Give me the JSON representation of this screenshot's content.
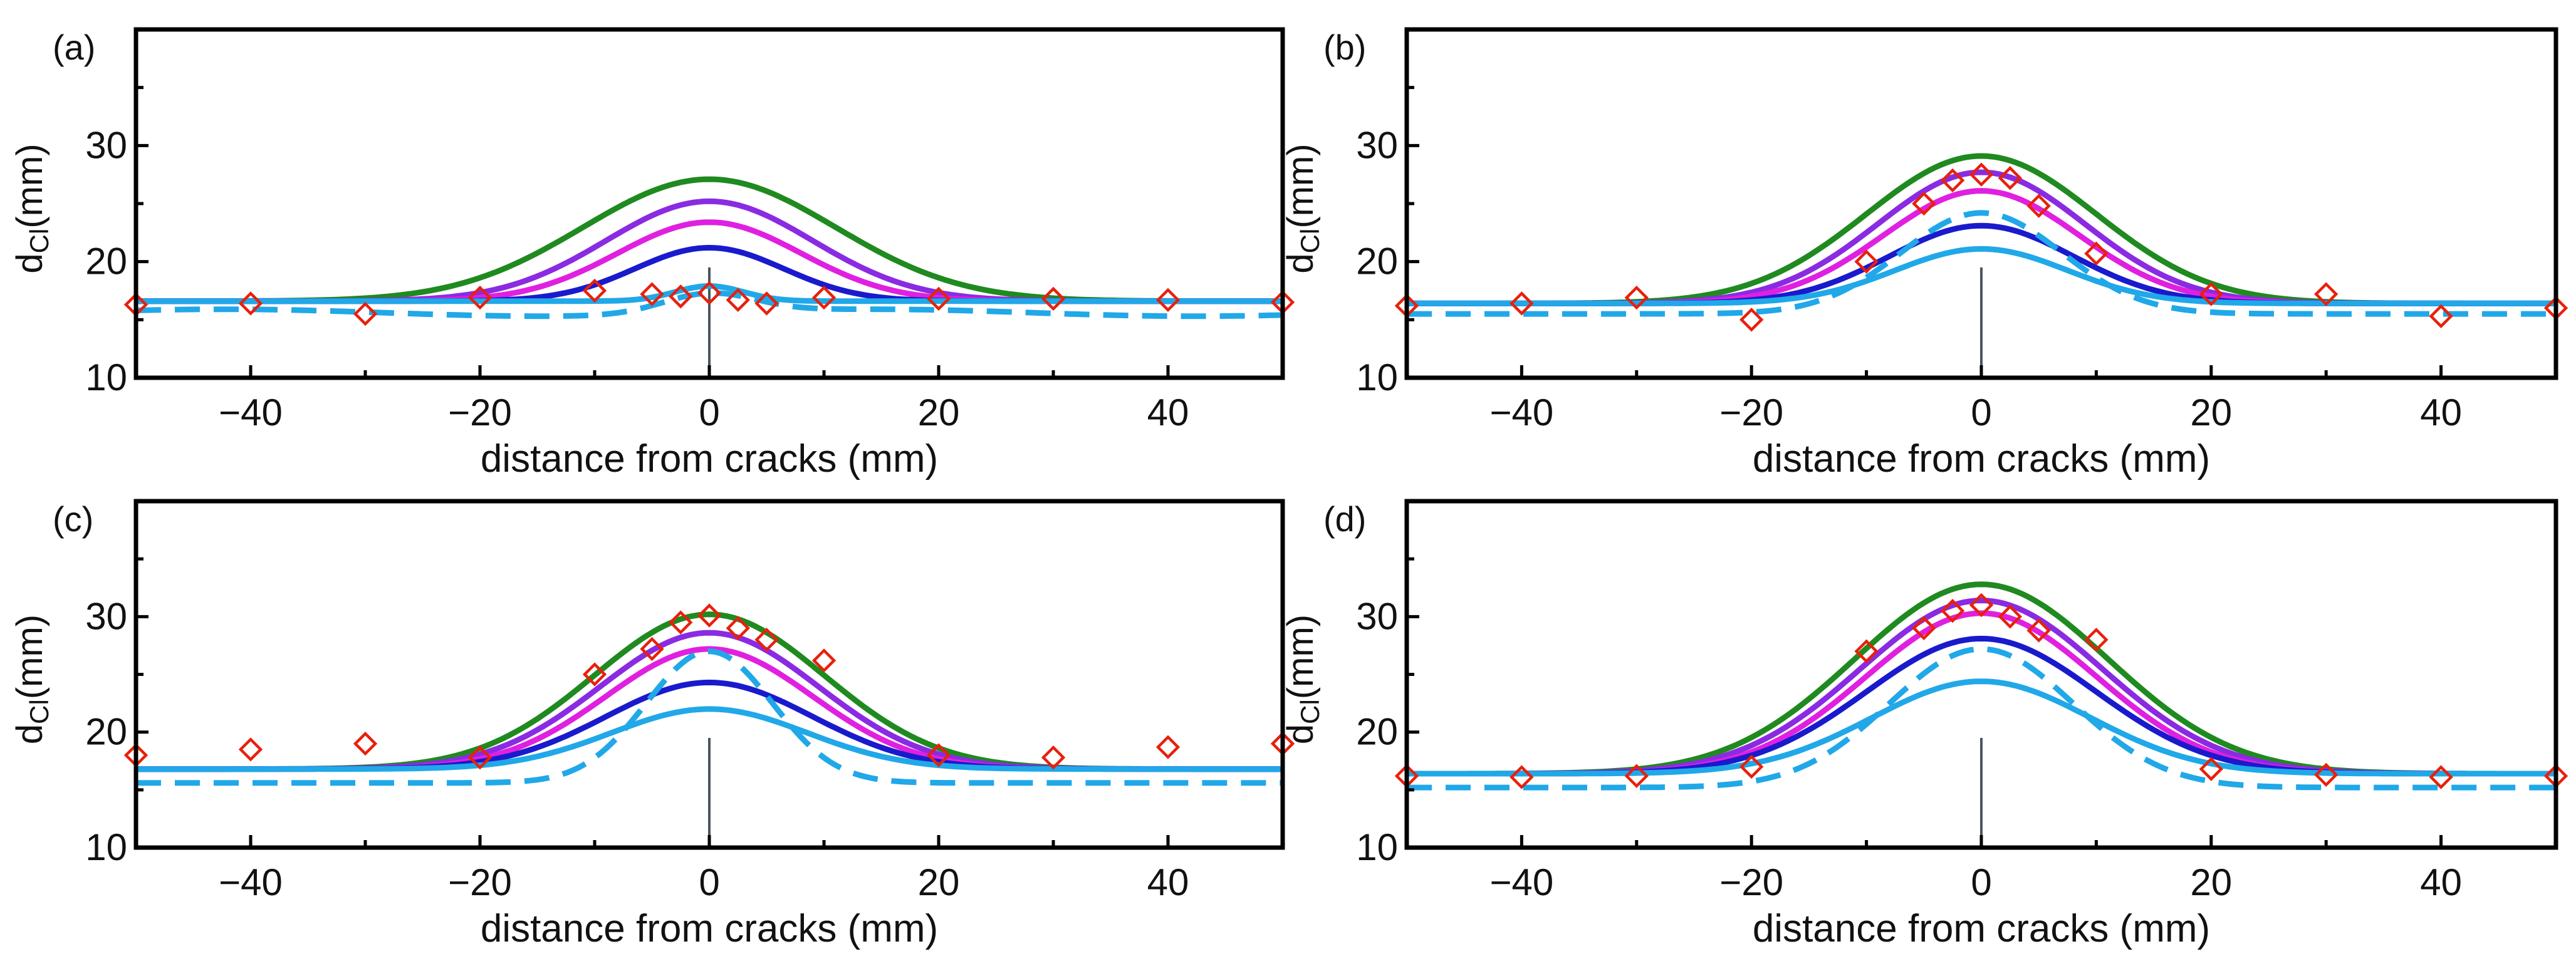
{
  "chart_data": [
    {
      "type": "line",
      "panel_label": "(a)",
      "xlabel": "distance from cracks  (mm)",
      "ylabel": {
        "main": "d",
        "sub": "Cl",
        "unit": "(mm)"
      },
      "xlim": [
        -50,
        50
      ],
      "ylim": [
        10,
        40
      ],
      "xticks": [
        -40,
        -20,
        0,
        20,
        40
      ],
      "xtick_labels": [
        "−40",
        "−20",
        "0",
        "20",
        "40"
      ],
      "yticks": [
        10,
        20,
        30
      ],
      "ytick_labels": [
        "10",
        "20",
        "30"
      ],
      "crack_marker": {
        "x": 0,
        "y_top": 19.5
      },
      "series": [
        {
          "name": "green",
          "color": "#1f8a1f",
          "dashed": false,
          "base": 16.6,
          "peak": 27.1,
          "width": 11,
          "drift": 0
        },
        {
          "name": "purple",
          "color": "#8a2be2",
          "dashed": false,
          "base": 16.6,
          "peak": 25.2,
          "width": 9,
          "drift": 0
        },
        {
          "name": "magenta",
          "color": "#e020e0",
          "dashed": false,
          "base": 16.6,
          "peak": 23.4,
          "width": 8,
          "drift": 0
        },
        {
          "name": "blue",
          "color": "#1a1acd",
          "dashed": false,
          "base": 16.6,
          "peak": 21.2,
          "width": 6.5,
          "drift": 0
        },
        {
          "name": "light-blue",
          "color": "#20a8e8",
          "dashed": false,
          "base": 16.6,
          "peak": 17.9,
          "width": 3,
          "drift": 0
        },
        {
          "name": "light-blue-dashed",
          "color": "#20a8e8",
          "dashed": true,
          "base": 15.6,
          "peak": 17.3,
          "width": 4,
          "drift": 0.3
        }
      ],
      "scatter": {
        "name": "measured",
        "color": "#e8200c",
        "x": [
          -50,
          -40,
          -30,
          -20,
          -10,
          -5,
          -2.5,
          0,
          2.5,
          5,
          10,
          20,
          30,
          40,
          50
        ],
        "y": [
          16.3,
          16.4,
          15.5,
          16.9,
          17.5,
          17.2,
          17.0,
          17.3,
          16.7,
          16.4,
          16.9,
          16.8,
          16.8,
          16.7,
          16.5
        ]
      }
    },
    {
      "type": "line",
      "panel_label": "(b)",
      "xlabel": "distance from cracks  (mm)",
      "ylabel": {
        "main": "d",
        "sub": "Cl",
        "unit": "(mm)"
      },
      "xlim": [
        -50,
        50
      ],
      "ylim": [
        10,
        40
      ],
      "xticks": [
        -40,
        -20,
        0,
        20,
        40
      ],
      "xtick_labels": [
        "−40",
        "−20",
        "0",
        "20",
        "40"
      ],
      "yticks": [
        10,
        20,
        30
      ],
      "ytick_labels": [
        "10",
        "20",
        "30"
      ],
      "crack_marker": {
        "x": 0,
        "y_top": 19.5
      },
      "series": [
        {
          "name": "green",
          "color": "#1f8a1f",
          "dashed": false,
          "base": 16.4,
          "peak": 29.1,
          "width": 10,
          "drift": 0
        },
        {
          "name": "purple",
          "color": "#8a2be2",
          "dashed": false,
          "base": 16.4,
          "peak": 27.7,
          "width": 9,
          "drift": 0
        },
        {
          "name": "magenta",
          "color": "#e020e0",
          "dashed": false,
          "base": 16.4,
          "peak": 26.1,
          "width": 8.5,
          "drift": 0
        },
        {
          "name": "blue",
          "color": "#1a1acd",
          "dashed": false,
          "base": 16.4,
          "peak": 23.1,
          "width": 8,
          "drift": 0
        },
        {
          "name": "light-blue",
          "color": "#20a8e8",
          "dashed": false,
          "base": 16.4,
          "peak": 21.1,
          "width": 7.5,
          "drift": 0
        },
        {
          "name": "light-blue-dashed",
          "color": "#20a8e8",
          "dashed": true,
          "base": 15.5,
          "peak": 24.2,
          "width": 7,
          "drift": 0
        }
      ],
      "scatter": {
        "name": "measured",
        "color": "#e8200c",
        "x": [
          -50,
          -40,
          -30,
          -20,
          -10,
          -5,
          -2.5,
          0,
          2.5,
          5,
          10,
          20,
          30,
          40,
          50
        ],
        "y": [
          16.2,
          16.4,
          16.9,
          15.0,
          20.0,
          25.0,
          27.0,
          27.5,
          27.2,
          24.8,
          20.7,
          17.2,
          17.2,
          15.3,
          16.0
        ]
      }
    },
    {
      "type": "line",
      "panel_label": "(c)",
      "xlabel": "distance from cracks  (mm)",
      "ylabel": {
        "main": "d",
        "sub": "Cl",
        "unit": "(mm)"
      },
      "xlim": [
        -50,
        50
      ],
      "ylim": [
        10,
        40
      ],
      "xticks": [
        -40,
        -20,
        0,
        20,
        40
      ],
      "xtick_labels": [
        "−40",
        "−20",
        "0",
        "20",
        "40"
      ],
      "yticks": [
        10,
        20,
        30
      ],
      "ytick_labels": [
        "10",
        "20",
        "30"
      ],
      "crack_marker": {
        "x": 0,
        "y_top": 19.5
      },
      "series": [
        {
          "name": "green",
          "color": "#1f8a1f",
          "dashed": false,
          "base": 16.8,
          "peak": 30.2,
          "width": 10,
          "drift": 0
        },
        {
          "name": "purple",
          "color": "#8a2be2",
          "dashed": false,
          "base": 16.8,
          "peak": 28.6,
          "width": 9.5,
          "drift": 0
        },
        {
          "name": "magenta",
          "color": "#e020e0",
          "dashed": false,
          "base": 16.8,
          "peak": 27.2,
          "width": 9,
          "drift": 0
        },
        {
          "name": "blue",
          "color": "#1a1acd",
          "dashed": false,
          "base": 16.8,
          "peak": 24.3,
          "width": 9,
          "drift": 0
        },
        {
          "name": "light-blue",
          "color": "#20a8e8",
          "dashed": false,
          "base": 16.8,
          "peak": 22.0,
          "width": 8.5,
          "drift": 0
        },
        {
          "name": "light-blue-dashed",
          "color": "#20a8e8",
          "dashed": true,
          "base": 15.6,
          "peak": 27.0,
          "width": 5.5,
          "drift": 0
        }
      ],
      "scatter": {
        "name": "measured",
        "color": "#e8200c",
        "x": [
          -50,
          -40,
          -30,
          -20,
          -10,
          -5,
          -2.5,
          0,
          2.5,
          5,
          10,
          20,
          30,
          40,
          50
        ],
        "y": [
          18.0,
          18.5,
          19.0,
          17.8,
          25.0,
          27.2,
          29.5,
          30.1,
          29.0,
          28.0,
          26.2,
          18.0,
          17.8,
          18.7,
          19.0
        ]
      }
    },
    {
      "type": "line",
      "panel_label": "(d)",
      "xlabel": "distance from cracks  (mm)",
      "ylabel": {
        "main": "d",
        "sub": "Cl",
        "unit": "(mm)"
      },
      "xlim": [
        -50,
        50
      ],
      "ylim": [
        10,
        40
      ],
      "xticks": [
        -40,
        -20,
        0,
        20,
        40
      ],
      "xtick_labels": [
        "−40",
        "−20",
        "0",
        "20",
        "40"
      ],
      "yticks": [
        10,
        20,
        30
      ],
      "ytick_labels": [
        "10",
        "20",
        "30"
      ],
      "crack_marker": {
        "x": 0,
        "y_top": 19.5
      },
      "series": [
        {
          "name": "green",
          "color": "#1f8a1f",
          "dashed": false,
          "base": 16.4,
          "peak": 32.8,
          "width": 11,
          "drift": 0
        },
        {
          "name": "purple",
          "color": "#8a2be2",
          "dashed": false,
          "base": 16.4,
          "peak": 31.4,
          "width": 10.5,
          "drift": 0
        },
        {
          "name": "magenta",
          "color": "#e020e0",
          "dashed": false,
          "base": 16.4,
          "peak": 30.3,
          "width": 10,
          "drift": 0
        },
        {
          "name": "blue",
          "color": "#1a1acd",
          "dashed": false,
          "base": 16.4,
          "peak": 28.1,
          "width": 10,
          "drift": 0
        },
        {
          "name": "light-blue",
          "color": "#20a8e8",
          "dashed": false,
          "base": 16.4,
          "peak": 24.4,
          "width": 9.5,
          "drift": 0
        },
        {
          "name": "light-blue-dashed",
          "color": "#20a8e8",
          "dashed": true,
          "base": 15.2,
          "peak": 27.2,
          "width": 8,
          "drift": 0
        }
      ],
      "scatter": {
        "name": "measured",
        "color": "#e8200c",
        "x": [
          -50,
          -40,
          -30,
          -20,
          -10,
          -5,
          -2.5,
          0,
          2.5,
          5,
          10,
          20,
          30,
          40,
          50
        ],
        "y": [
          16.2,
          16.1,
          16.2,
          17.0,
          27.0,
          29.0,
          30.5,
          31.0,
          30.0,
          28.8,
          28.0,
          16.8,
          16.3,
          16.1,
          16.2
        ]
      }
    }
  ]
}
